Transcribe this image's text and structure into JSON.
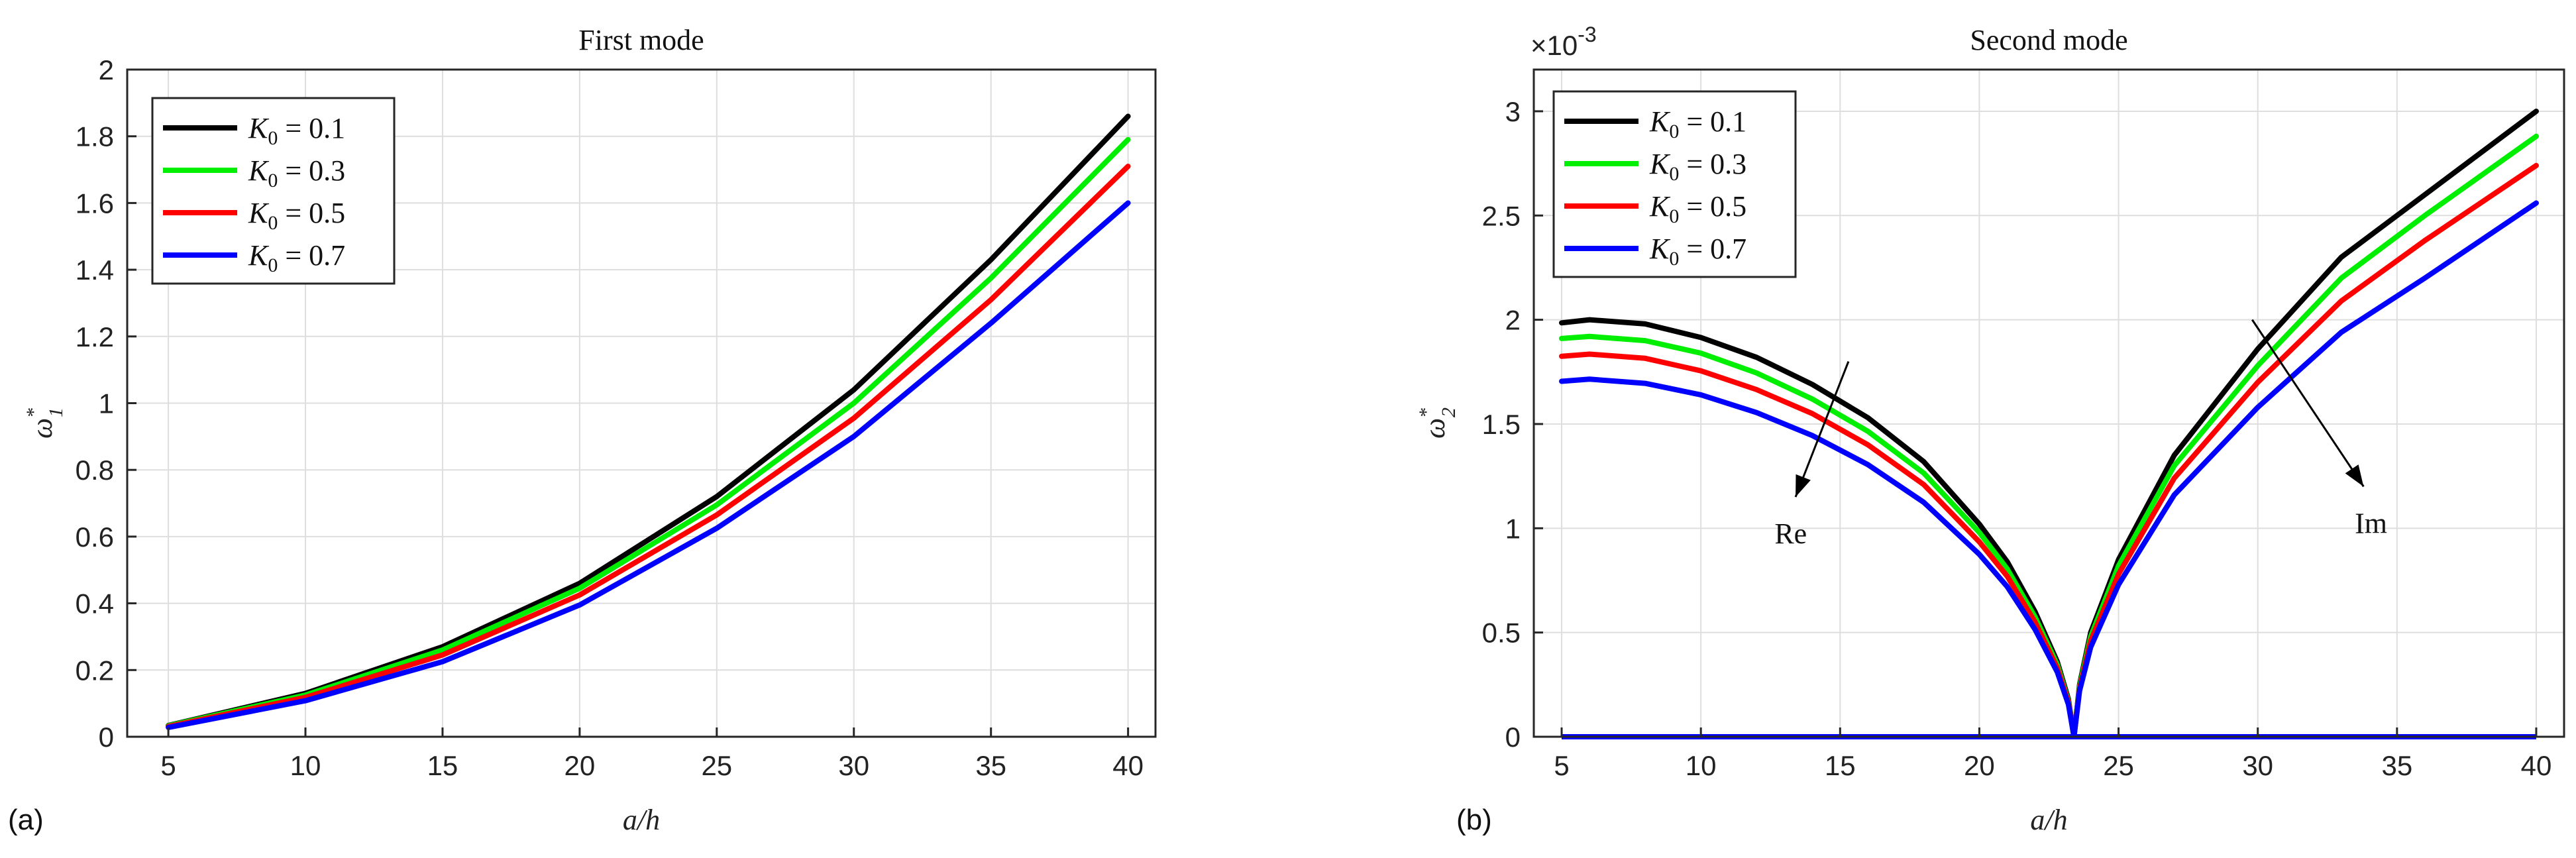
{
  "chart_data": [
    {
      "type": "line",
      "panel_label": "(a)",
      "title": "First mode",
      "xlabel": "a/h",
      "ylabel": "ω*1",
      "ylabel_base": "ω",
      "ylabel_sup": "*",
      "ylabel_sub": "1",
      "xlim": [
        3.5,
        41
      ],
      "ylim": [
        0,
        2
      ],
      "xticks": [
        5,
        10,
        15,
        20,
        25,
        30,
        35,
        40
      ],
      "yticks": [
        0,
        0.2,
        0.4,
        0.6,
        0.8,
        1,
        1.2,
        1.4,
        1.6,
        1.8,
        2
      ],
      "grid": true,
      "legend_position": "top-left",
      "series": [
        {
          "name": "K0 = 0.1",
          "legend_base": "K",
          "legend_sub": "0",
          "legend_rest": " = 0.1",
          "color": "#000000",
          "x": [
            5,
            10,
            15,
            20,
            25,
            30,
            35,
            40
          ],
          "y": [
            0.034,
            0.13,
            0.27,
            0.46,
            0.72,
            1.04,
            1.43,
            1.86
          ]
        },
        {
          "name": "K0 = 0.3",
          "legend_base": "K",
          "legend_sub": "0",
          "legend_rest": " = 0.3",
          "color": "#00ee00",
          "x": [
            5,
            10,
            15,
            20,
            25,
            30,
            35,
            40
          ],
          "y": [
            0.033,
            0.125,
            0.26,
            0.445,
            0.695,
            1.0,
            1.375,
            1.79
          ]
        },
        {
          "name": "K0 = 0.5",
          "legend_base": "K",
          "legend_sub": "0",
          "legend_rest": " = 0.5",
          "color": "#ff0000",
          "x": [
            5,
            10,
            15,
            20,
            25,
            30,
            35,
            40
          ],
          "y": [
            0.031,
            0.118,
            0.245,
            0.425,
            0.665,
            0.955,
            1.31,
            1.71
          ]
        },
        {
          "name": "K0 = 0.7",
          "legend_base": "K",
          "legend_sub": "0",
          "legend_rest": " = 0.7",
          "color": "#0000ff",
          "x": [
            5,
            10,
            15,
            20,
            25,
            30,
            35,
            40
          ],
          "y": [
            0.028,
            0.108,
            0.225,
            0.395,
            0.625,
            0.9,
            1.24,
            1.6
          ]
        }
      ]
    },
    {
      "type": "line",
      "panel_label": "(b)",
      "title": "Second mode",
      "xlabel": "a/h",
      "ylabel": "ω*2",
      "ylabel_base": "ω",
      "ylabel_sup": "*",
      "ylabel_sub": "2",
      "y_multiplier_base": "×10",
      "y_multiplier_exp": "-3",
      "xlim": [
        4,
        41
      ],
      "ylim": [
        0,
        3.2
      ],
      "xticks": [
        5,
        10,
        15,
        20,
        25,
        30,
        35,
        40
      ],
      "yticks": [
        0,
        0.5,
        1,
        1.5,
        2,
        2.5,
        3
      ],
      "grid": true,
      "legend_position": "top-left",
      "critical_x": 23.4,
      "annotations": [
        {
          "text": "Re",
          "arrow_from": [
            15.3,
            1.8
          ],
          "arrow_to": [
            13.4,
            1.15
          ]
        },
        {
          "text": "Im",
          "arrow_from": [
            29.8,
            2.0
          ],
          "arrow_to": [
            33.8,
            1.2
          ]
        }
      ],
      "series": [
        {
          "name": "K0 = 0.1",
          "legend_base": "K",
          "legend_sub": "0",
          "legend_rest": " = 0.1",
          "color": "#000000",
          "re_x": [
            5,
            6,
            8,
            10,
            12,
            14,
            16,
            18,
            20,
            21,
            22,
            22.8,
            23.2,
            23.4
          ],
          "re_y": [
            1.985,
            2.0,
            1.98,
            1.915,
            1.82,
            1.69,
            1.53,
            1.32,
            1.02,
            0.84,
            0.6,
            0.36,
            0.18,
            0
          ],
          "im_x": [
            23.4,
            23.6,
            24,
            25,
            27,
            30,
            33,
            36,
            40
          ],
          "im_y": [
            0,
            0.25,
            0.5,
            0.85,
            1.35,
            1.86,
            2.3,
            2.6,
            3.0
          ]
        },
        {
          "name": "K0 = 0.3",
          "legend_base": "K",
          "legend_sub": "0",
          "legend_rest": " = 0.3",
          "color": "#00ee00",
          "re_x": [
            5,
            6,
            8,
            10,
            12,
            14,
            16,
            18,
            20,
            21,
            22,
            22.8,
            23.2,
            23.4
          ],
          "re_y": [
            1.91,
            1.92,
            1.9,
            1.84,
            1.745,
            1.62,
            1.465,
            1.265,
            0.98,
            0.805,
            0.575,
            0.345,
            0.17,
            0
          ],
          "im_x": [
            23.4,
            23.6,
            24,
            25,
            27,
            30,
            33,
            36,
            40
          ],
          "im_y": [
            0,
            0.24,
            0.48,
            0.82,
            1.3,
            1.78,
            2.2,
            2.5,
            2.88
          ]
        },
        {
          "name": "K0 = 0.5",
          "legend_base": "K",
          "legend_sub": "0",
          "legend_rest": " = 0.5",
          "color": "#ff0000",
          "re_x": [
            5,
            6,
            8,
            10,
            12,
            14,
            16,
            18,
            20,
            21,
            22,
            22.8,
            23.2,
            23.4
          ],
          "re_y": [
            1.825,
            1.835,
            1.815,
            1.755,
            1.665,
            1.55,
            1.4,
            1.21,
            0.935,
            0.77,
            0.55,
            0.33,
            0.165,
            0
          ],
          "im_x": [
            23.4,
            23.6,
            24,
            25,
            27,
            30,
            33,
            36,
            40
          ],
          "im_y": [
            0,
            0.23,
            0.46,
            0.78,
            1.24,
            1.7,
            2.09,
            2.38,
            2.74
          ]
        },
        {
          "name": "K0 = 0.7",
          "legend_base": "K",
          "legend_sub": "0",
          "legend_rest": " = 0.7",
          "color": "#0000ff",
          "re_x": [
            5,
            6,
            8,
            10,
            12,
            14,
            16,
            18,
            20,
            21,
            22,
            22.8,
            23.2,
            23.4
          ],
          "re_y": [
            1.705,
            1.715,
            1.695,
            1.64,
            1.555,
            1.445,
            1.305,
            1.125,
            0.875,
            0.72,
            0.515,
            0.31,
            0.155,
            0
          ],
          "im_x": [
            23.4,
            23.6,
            24,
            25,
            27,
            30,
            33,
            36,
            40
          ],
          "im_y": [
            0,
            0.22,
            0.43,
            0.73,
            1.16,
            1.58,
            1.94,
            2.2,
            2.56
          ]
        }
      ]
    }
  ]
}
